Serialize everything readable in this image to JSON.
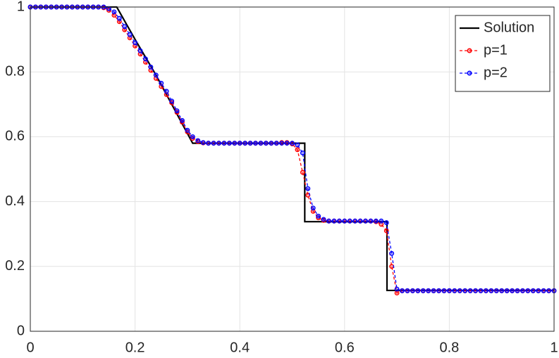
{
  "chart_data": {
    "type": "line",
    "x": [
      0,
      0.01,
      0.02,
      0.03,
      0.04,
      0.05,
      0.06,
      0.07,
      0.08,
      0.09,
      0.1,
      0.11,
      0.12,
      0.13,
      0.14,
      0.15,
      0.16,
      0.17,
      0.18,
      0.19,
      0.2,
      0.21,
      0.22,
      0.23,
      0.24,
      0.25,
      0.26,
      0.27,
      0.28,
      0.29,
      0.3,
      0.31,
      0.32,
      0.33,
      0.34,
      0.35,
      0.36,
      0.37,
      0.38,
      0.39,
      0.4,
      0.41,
      0.42,
      0.43,
      0.44,
      0.45,
      0.46,
      0.47,
      0.48,
      0.49,
      0.5,
      0.51,
      0.52,
      0.53,
      0.54,
      0.55,
      0.56,
      0.57,
      0.58,
      0.59,
      0.6,
      0.61,
      0.62,
      0.63,
      0.64,
      0.65,
      0.66,
      0.67,
      0.68,
      0.69,
      0.7,
      0.71,
      0.72,
      0.73,
      0.74,
      0.75,
      0.76,
      0.77,
      0.78,
      0.79,
      0.8,
      0.81,
      0.82,
      0.83,
      0.84,
      0.85,
      0.86,
      0.87,
      0.88,
      0.89,
      0.9,
      0.91,
      0.92,
      0.93,
      0.94,
      0.95,
      0.96,
      0.97,
      0.98,
      0.99,
      1
    ],
    "series": [
      {
        "name": "Solution",
        "color": "#000000",
        "dashed": false,
        "markers": false,
        "x": [
          0,
          0.165,
          0.2,
          0.24,
          0.28,
          0.31,
          0.524,
          0.524,
          0.681,
          0.681,
          1
        ],
        "values": [
          1,
          1,
          0.9,
          0.79,
          0.67,
          0.58,
          0.58,
          0.338,
          0.338,
          0.126,
          0.126
        ]
      },
      {
        "name": "p=1",
        "color": "#ff0000",
        "dashed": true,
        "markers": true,
        "values": [
          1,
          1,
          1,
          1,
          1,
          1,
          1,
          1,
          1,
          1,
          1,
          1,
          1,
          1,
          0.998,
          0.99,
          0.975,
          0.955,
          0.93,
          0.905,
          0.88,
          0.855,
          0.83,
          0.805,
          0.78,
          0.755,
          0.73,
          0.705,
          0.675,
          0.645,
          0.615,
          0.595,
          0.585,
          0.581,
          0.58,
          0.58,
          0.58,
          0.58,
          0.58,
          0.58,
          0.58,
          0.58,
          0.58,
          0.58,
          0.58,
          0.58,
          0.58,
          0.58,
          0.582,
          0.582,
          0.578,
          0.56,
          0.49,
          0.42,
          0.37,
          0.35,
          0.342,
          0.34,
          0.34,
          0.34,
          0.34,
          0.34,
          0.34,
          0.34,
          0.34,
          0.34,
          0.338,
          0.33,
          0.31,
          0.2,
          0.118,
          0.125,
          0.125,
          0.125,
          0.125,
          0.125,
          0.125,
          0.125,
          0.125,
          0.125,
          0.125,
          0.125,
          0.125,
          0.125,
          0.125,
          0.125,
          0.125,
          0.125,
          0.125,
          0.125,
          0.125,
          0.125,
          0.125,
          0.125,
          0.125,
          0.125,
          0.125,
          0.125,
          0.125,
          0.125,
          0.125
        ]
      },
      {
        "name": "p=2",
        "color": "#0000ff",
        "dashed": true,
        "markers": true,
        "values": [
          1,
          1,
          1,
          1,
          1,
          1,
          1,
          1,
          1,
          1,
          1,
          1,
          1,
          1,
          1,
          0.995,
          0.985,
          0.965,
          0.94,
          0.915,
          0.89,
          0.865,
          0.84,
          0.815,
          0.79,
          0.765,
          0.74,
          0.71,
          0.68,
          0.65,
          0.62,
          0.6,
          0.588,
          0.582,
          0.58,
          0.58,
          0.58,
          0.58,
          0.58,
          0.58,
          0.58,
          0.58,
          0.58,
          0.58,
          0.58,
          0.58,
          0.58,
          0.58,
          0.58,
          0.58,
          0.58,
          0.575,
          0.55,
          0.44,
          0.38,
          0.355,
          0.345,
          0.34,
          0.34,
          0.34,
          0.34,
          0.34,
          0.34,
          0.34,
          0.34,
          0.34,
          0.34,
          0.34,
          0.335,
          0.24,
          0.13,
          0.125,
          0.125,
          0.125,
          0.125,
          0.125,
          0.125,
          0.125,
          0.125,
          0.125,
          0.125,
          0.125,
          0.125,
          0.125,
          0.125,
          0.125,
          0.125,
          0.125,
          0.125,
          0.125,
          0.125,
          0.125,
          0.125,
          0.125,
          0.125,
          0.125,
          0.125,
          0.125,
          0.125,
          0.125,
          0.125
        ]
      }
    ],
    "xlim": [
      0,
      1
    ],
    "xticks": [
      0,
      0.2,
      0.4,
      0.6,
      0.8,
      1
    ],
    "ylim": [
      0,
      1
    ],
    "yticks": [
      0,
      0.2,
      0.4,
      0.6,
      0.8,
      1
    ],
    "grid": true,
    "legend": "top-right"
  }
}
